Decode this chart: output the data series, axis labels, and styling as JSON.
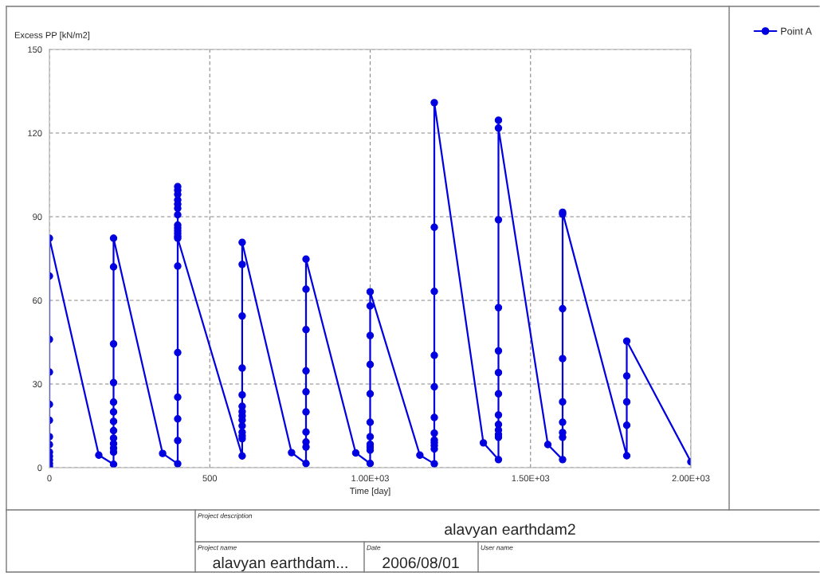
{
  "chart_data": {
    "type": "line",
    "xlabel": "Time [day]",
    "ylabel": "Excess PP [kN/m2]",
    "xlim": [
      0,
      2000
    ],
    "ylim": [
      0,
      150
    ],
    "xticks": [
      0,
      500,
      {
        "value": 1000,
        "label": "1.00E+03"
      },
      {
        "value": 1500,
        "label": "1.50E+03"
      },
      {
        "value": 2000,
        "label": "2.00E+03"
      }
    ],
    "yticks": [
      0,
      30,
      60,
      90,
      120,
      150
    ],
    "grid": true,
    "legend": "right",
    "marker": "circle",
    "line_style": "solid",
    "series": [
      {
        "name": "Point A",
        "color": "#0000e0",
        "x": [
          0,
          0,
          0,
          0,
          0,
          0,
          0,
          0,
          0,
          0,
          0,
          0,
          0,
          154,
          200,
          200,
          200,
          200,
          200,
          200,
          200,
          200,
          200,
          200,
          200,
          200,
          200,
          353,
          400,
          400,
          400,
          400,
          400,
          400,
          400,
          400,
          400,
          400,
          400,
          400,
          400,
          400,
          400,
          400,
          400,
          400,
          400,
          601,
          601,
          601,
          601,
          601,
          601,
          601,
          601,
          601,
          601,
          601,
          601,
          601,
          601,
          755,
          800,
          800,
          800,
          800,
          800,
          800,
          800,
          800,
          800,
          800,
          955,
          1000,
          1000,
          1000,
          1000,
          1000,
          1000,
          1000,
          1000,
          1000,
          1000,
          1000,
          1155,
          1200,
          1200,
          1200,
          1200,
          1200,
          1200,
          1200,
          1200,
          1200,
          1200,
          1200,
          1200,
          1353,
          1400,
          1400,
          1400,
          1400,
          1400,
          1400,
          1400,
          1400,
          1400,
          1400,
          1400,
          1400,
          1400,
          1554,
          1600,
          1600,
          1600,
          1600,
          1600,
          1600,
          1600,
          1600,
          1600,
          1800,
          1800,
          1800,
          1800,
          1800,
          2000
        ],
        "values": [
          0.5,
          1.5,
          2.8,
          4.1,
          5.6,
          8.3,
          11.1,
          17,
          22.7,
          34.3,
          46,
          68.7,
          82.3,
          4.5,
          1.2,
          5.6,
          7,
          8.6,
          10.6,
          13.3,
          16.6,
          20,
          23.5,
          30.5,
          44.4,
          72,
          82.3,
          5.1,
          1.4,
          9.7,
          17.5,
          25.3,
          41.3,
          72.3,
          83,
          84,
          85,
          86,
          87,
          90.7,
          93,
          94.5,
          96,
          98,
          99.5,
          100.8,
          82.3,
          4.2,
          10.4,
          11.4,
          12.7,
          15,
          17.1,
          18.6,
          20.1,
          22,
          26.1,
          35.7,
          54.4,
          72.9,
          80.8,
          5.4,
          1.5,
          7.4,
          9.2,
          12.8,
          20,
          27.2,
          34.7,
          49.5,
          64,
          74.8,
          5.3,
          1.5,
          6.3,
          7.4,
          8.4,
          11.1,
          16.3,
          26.5,
          37,
          47.4,
          58,
          63.1,
          4.5,
          1.4,
          6.7,
          7.9,
          9,
          9.9,
          12.4,
          18,
          29,
          40.3,
          63.2,
          86.2,
          130.9,
          8.9,
          2.9,
          10.9,
          11.9,
          13.5,
          15.5,
          18.9,
          26.5,
          34.1,
          41.9,
          57.4,
          88.9,
          124.6,
          121.8,
          8.3,
          2.9,
          10.9,
          12.6,
          16.3,
          23.6,
          39.1,
          57,
          90.9,
          91.6,
          4.3,
          15.2,
          23.6,
          32.9,
          45.4,
          2.1
        ]
      }
    ],
    "annotations": [
      "Project description",
      "alavyan earthdam2",
      "Project name",
      "alavyan earthdam...",
      "Date",
      "2006/08/01",
      "User name"
    ]
  }
}
